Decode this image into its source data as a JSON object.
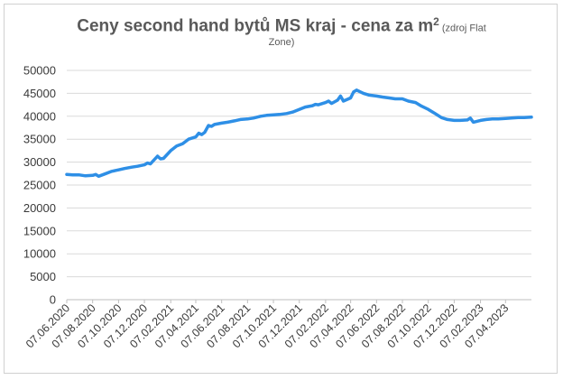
{
  "chart_data": {
    "type": "line",
    "title_main": "Ceny second hand bytů MS kraj - cena za m",
    "title_sup": "2",
    "title_source_1": " (zdroj Flat",
    "title_source_2": "Zone)",
    "xlabel": "",
    "ylabel": "",
    "ylim": [
      0,
      50000
    ],
    "yticks": [
      0,
      5000,
      10000,
      15000,
      20000,
      25000,
      30000,
      35000,
      40000,
      45000,
      50000
    ],
    "xtick_labels": [
      "07.06.2020",
      "07.08.2020",
      "07.10.2020",
      "07.12.2020",
      "07.02.2021",
      "07.04.2021",
      "07.06.2021",
      "07.08.2021",
      "07.10.2021",
      "07.12.2021",
      "07.02.2022",
      "07.04.2022",
      "07.06.2022",
      "07.08.2022",
      "07.10.2022",
      "07.12.2022",
      "07.02.2023",
      "07.04.2023"
    ],
    "grid": true,
    "legend": "none",
    "line_color": "#2e8fe6",
    "series": [
      {
        "x": [
          "07.06.2020",
          "21.06.2020",
          "07.07.2020",
          "21.07.2020",
          "07.08.2020",
          "14.08.2020",
          "21.08.2020",
          "07.09.2020",
          "21.09.2020",
          "07.10.2020",
          "21.10.2020",
          "07.11.2020",
          "21.11.2020",
          "07.12.2020",
          "14.12.2020",
          "21.12.2020",
          "07.01.2021",
          "14.01.2021",
          "21.01.2021",
          "28.01.2021",
          "07.02.2021",
          "21.02.2021",
          "07.03.2021",
          "21.03.2021",
          "07.04.2021",
          "14.04.2021",
          "21.04.2021",
          "28.04.2021",
          "07.05.2021",
          "14.05.2021",
          "21.05.2021",
          "07.06.2021",
          "21.06.2021",
          "07.07.2021",
          "21.07.2021",
          "07.08.2021",
          "21.08.2021",
          "07.09.2021",
          "21.09.2021",
          "07.10.2021",
          "21.10.2021",
          "07.11.2021",
          "21.11.2021",
          "07.12.2021",
          "21.12.2021",
          "07.01.2022",
          "14.01.2022",
          "21.01.2022",
          "07.02.2022",
          "14.02.2022",
          "21.02.2022",
          "07.03.2022",
          "14.03.2022",
          "21.03.2022",
          "07.04.2022",
          "14.04.2022",
          "21.04.2022",
          "07.05.2022",
          "21.05.2022",
          "07.06.2022",
          "21.06.2022",
          "07.07.2022",
          "21.07.2022",
          "07.08.2022",
          "21.08.2022",
          "07.09.2022",
          "21.09.2022",
          "07.10.2022",
          "21.10.2022",
          "07.11.2022",
          "21.11.2022",
          "07.12.2022",
          "21.12.2022",
          "07.01.2023",
          "14.01.2023",
          "21.01.2023",
          "07.02.2023",
          "21.02.2023",
          "07.03.2023",
          "21.03.2023",
          "07.04.2023",
          "21.04.2023",
          "07.05.2023",
          "21.05.2023",
          "07.06.2023"
        ],
        "values": [
          27300,
          27200,
          27200,
          27000,
          27100,
          27300,
          26900,
          27500,
          28000,
          28300,
          28600,
          28900,
          29100,
          29400,
          29800,
          29600,
          31300,
          30700,
          30800,
          31500,
          32500,
          33500,
          34000,
          35000,
          35500,
          36300,
          36000,
          36500,
          38000,
          37800,
          38200,
          38500,
          38700,
          39000,
          39300,
          39400,
          39600,
          40000,
          40200,
          40300,
          40400,
          40600,
          40900,
          41500,
          42000,
          42300,
          42600,
          42500,
          43000,
          43300,
          42800,
          43500,
          44400,
          43300,
          44000,
          45300,
          45700,
          45000,
          44600,
          44400,
          44200,
          44000,
          43800,
          43800,
          43300,
          43000,
          42200,
          41500,
          40700,
          39700,
          39300,
          39100,
          39100,
          39200,
          39600,
          38700,
          39100,
          39300,
          39400,
          39400,
          39500,
          39600,
          39700,
          39700,
          39800
        ]
      }
    ]
  }
}
